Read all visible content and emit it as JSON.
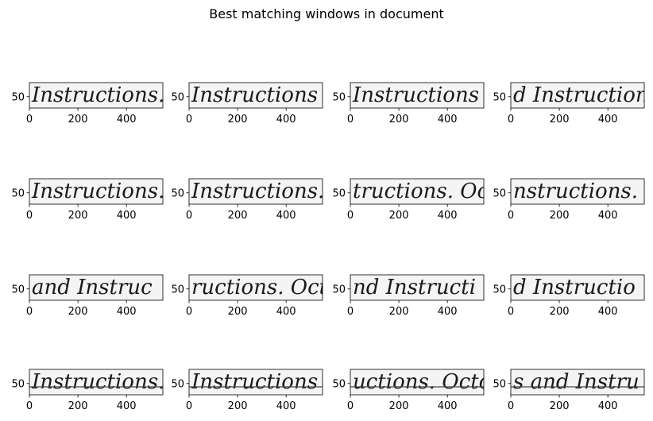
{
  "chart_data": {
    "type": "image-grid",
    "title": "Best matching windows in document",
    "rows": 4,
    "cols": 4,
    "xlim": [
      0,
      550
    ],
    "ylim": [
      0,
      90
    ],
    "xticks": [
      0,
      200,
      400
    ],
    "yticks": [
      50
    ],
    "panels": [
      {
        "text": "Instructions."
      },
      {
        "text": "Instructions"
      },
      {
        "text": "Instructions"
      },
      {
        "text": "d Instruction"
      },
      {
        "text": "Instructions."
      },
      {
        "text": "Instructions. O"
      },
      {
        "text": "tructions. Octo"
      },
      {
        "text": "nstructions."
      },
      {
        "text": "and Instruc"
      },
      {
        "text": "ructions. Octobe"
      },
      {
        "text": "nd Instructi"
      },
      {
        "text": "d Instructio"
      },
      {
        "text": "Instructions."
      },
      {
        "text": "Instructions"
      },
      {
        "text": "uctions. Octobe"
      },
      {
        "text": "s and Instru"
      }
    ]
  }
}
